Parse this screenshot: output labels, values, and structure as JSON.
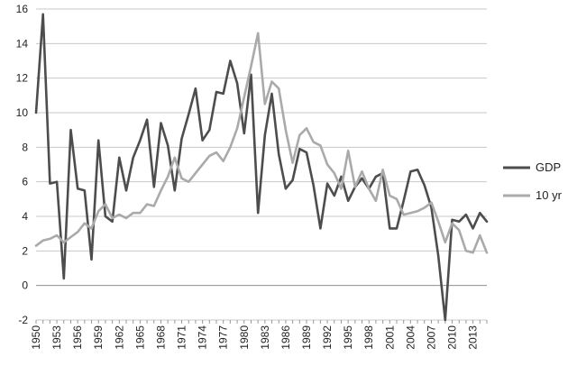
{
  "chart_data": {
    "type": "line",
    "title": "",
    "xlabel": "",
    "ylabel": "",
    "ylim": [
      -2,
      16
    ],
    "yticks": [
      -2,
      0,
      2,
      4,
      6,
      8,
      10,
      12,
      14,
      16
    ],
    "grid": "horizontal",
    "legend_position": "right",
    "x": [
      1950,
      1951,
      1952,
      1953,
      1954,
      1955,
      1956,
      1957,
      1958,
      1959,
      1960,
      1961,
      1962,
      1963,
      1964,
      1965,
      1966,
      1967,
      1968,
      1969,
      1970,
      1971,
      1972,
      1973,
      1974,
      1975,
      1976,
      1977,
      1978,
      1979,
      1980,
      1981,
      1982,
      1983,
      1984,
      1985,
      1986,
      1987,
      1988,
      1989,
      1990,
      1991,
      1992,
      1993,
      1994,
      1995,
      1996,
      1997,
      1998,
      1999,
      2000,
      2001,
      2002,
      2003,
      2004,
      2005,
      2006,
      2007,
      2008,
      2009,
      2010,
      2011,
      2012,
      2013,
      2014,
      2015
    ],
    "xtick_labels": [
      "1950",
      "1953",
      "1956",
      "1959",
      "1962",
      "1965",
      "1968",
      "1971",
      "1974",
      "1977",
      "1980",
      "1983",
      "1986",
      "1989",
      "1992",
      "1995",
      "1998",
      "2001",
      "2004",
      "2007",
      "2010",
      "2013"
    ],
    "series": [
      {
        "name": "GDP",
        "color": "#4d4d4d",
        "values": [
          10.0,
          15.7,
          5.9,
          6.0,
          0.4,
          9.0,
          5.6,
          5.5,
          1.5,
          8.4,
          4.0,
          3.7,
          7.4,
          5.5,
          7.4,
          8.4,
          9.6,
          5.7,
          9.4,
          8.1,
          5.5,
          8.5,
          9.9,
          11.4,
          8.4,
          9.0,
          11.2,
          11.1,
          13.0,
          11.7,
          8.8,
          12.2,
          4.2,
          8.7,
          11.1,
          7.6,
          5.6,
          6.1,
          7.9,
          7.7,
          5.8,
          3.3,
          5.9,
          5.2,
          6.3,
          4.9,
          5.7,
          6.2,
          5.6,
          6.3,
          6.5,
          3.3,
          3.3,
          4.9,
          6.6,
          6.7,
          5.8,
          4.5,
          1.7,
          -2.0,
          3.8,
          3.7,
          4.1,
          3.3,
          4.2,
          3.7
        ]
      },
      {
        "name": "10 yr",
        "color": "#aaaaaa",
        "values": [
          2.3,
          2.6,
          2.7,
          2.9,
          2.5,
          2.8,
          3.1,
          3.6,
          3.3,
          4.3,
          4.7,
          3.9,
          4.1,
          3.9,
          4.2,
          4.2,
          4.7,
          4.6,
          5.5,
          6.3,
          7.4,
          6.2,
          6.0,
          6.5,
          7.0,
          7.5,
          7.7,
          7.2,
          8.0,
          9.1,
          10.9,
          12.7,
          14.6,
          10.5,
          11.8,
          11.4,
          9.0,
          7.1,
          8.7,
          9.1,
          8.3,
          8.1,
          7.0,
          6.5,
          5.6,
          7.8,
          5.7,
          6.6,
          5.6,
          4.9,
          6.7,
          5.2,
          5.0,
          4.1,
          4.2,
          4.3,
          4.5,
          4.8,
          3.7,
          2.5,
          3.6,
          3.2,
          2.0,
          1.9,
          2.9,
          1.9
        ]
      }
    ]
  }
}
